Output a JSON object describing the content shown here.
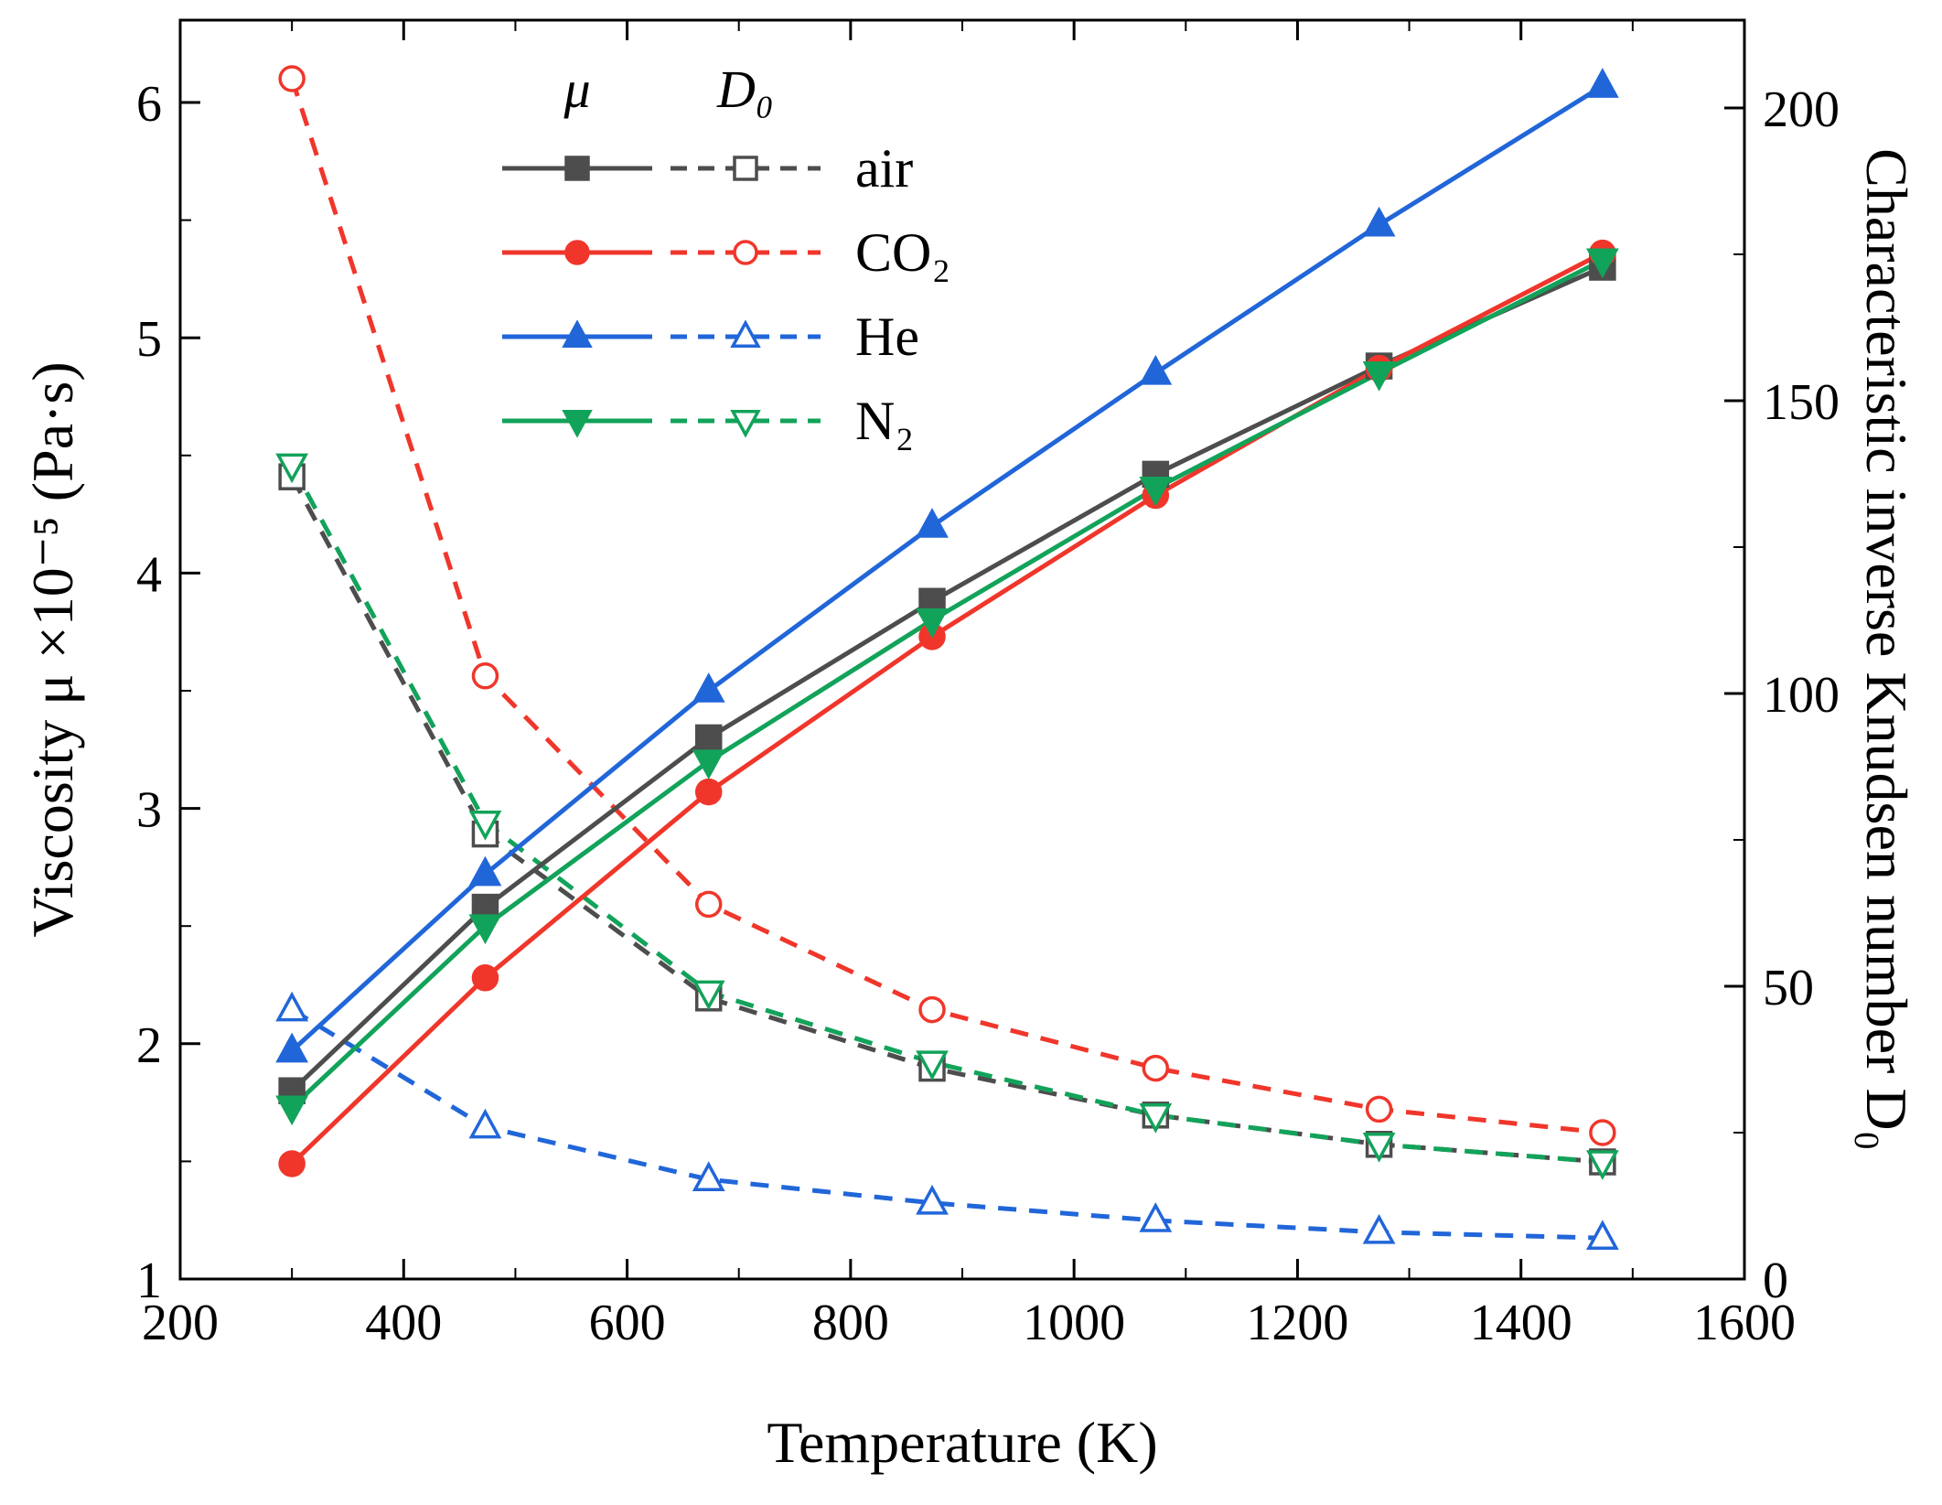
{
  "chart_data": {
    "type": "line",
    "title": "",
    "xlabel": "Temperature (K)",
    "ylabel_left": "Viscosity μ ×10⁻⁵ (Pa·s)",
    "ylabel_right": "Characteristic inverse Knudsen number D₀",
    "legend": {
      "mu": "μ",
      "d0": "D₀"
    },
    "x_range": [
      200,
      1600
    ],
    "y_left_range": [
      1,
      6.35
    ],
    "y_right_range": [
      0,
      215
    ],
    "x_ticks": [
      200,
      400,
      600,
      800,
      1000,
      1200,
      1400,
      1600
    ],
    "x_minor_step": 100,
    "y_left_ticks": [
      1,
      2,
      3,
      4,
      5,
      6
    ],
    "y_left_minor_step": 0.5,
    "y_right_ticks": [
      0,
      50,
      100,
      150,
      200
    ],
    "y_right_minor_step": 25,
    "grid": false,
    "legend_position": "top-left-inside",
    "x": [
      300,
      473,
      673,
      873,
      1073,
      1273,
      1473
    ],
    "series": [
      {
        "name": "air",
        "label": "air",
        "color": "#4d4d4d",
        "marker": "square",
        "viscosity": [
          1.8,
          2.58,
          3.3,
          3.88,
          4.42,
          4.88,
          5.3
        ],
        "d0": [
          137,
          76,
          48,
          36,
          28,
          23,
          20
        ]
      },
      {
        "name": "CO2",
        "label": "CO₂",
        "color": "#f0362b",
        "marker": "circle",
        "viscosity": [
          1.49,
          2.28,
          3.07,
          3.73,
          4.33,
          4.87,
          5.36
        ],
        "d0": [
          205,
          103,
          64,
          46,
          36,
          29,
          25
        ]
      },
      {
        "name": "He",
        "label": "He",
        "color": "#2166d9",
        "marker": "triangle-up",
        "viscosity": [
          1.97,
          2.72,
          3.5,
          4.2,
          4.85,
          5.48,
          6.07
        ],
        "d0": [
          46,
          26,
          17,
          13,
          10,
          8,
          7
        ]
      },
      {
        "name": "N2",
        "label": "N₂",
        "color": "#12a35a",
        "marker": "triangle-down",
        "viscosity": [
          1.73,
          2.5,
          3.2,
          3.8,
          4.36,
          4.85,
          5.33
        ],
        "d0": [
          139,
          78,
          49,
          37,
          28,
          23,
          20
        ]
      }
    ],
    "style_notes": {
      "solid_lines": "viscosity μ (left axis), filled markers",
      "dashed_lines": "inverse Knudsen number D₀ (right axis), open markers"
    }
  }
}
